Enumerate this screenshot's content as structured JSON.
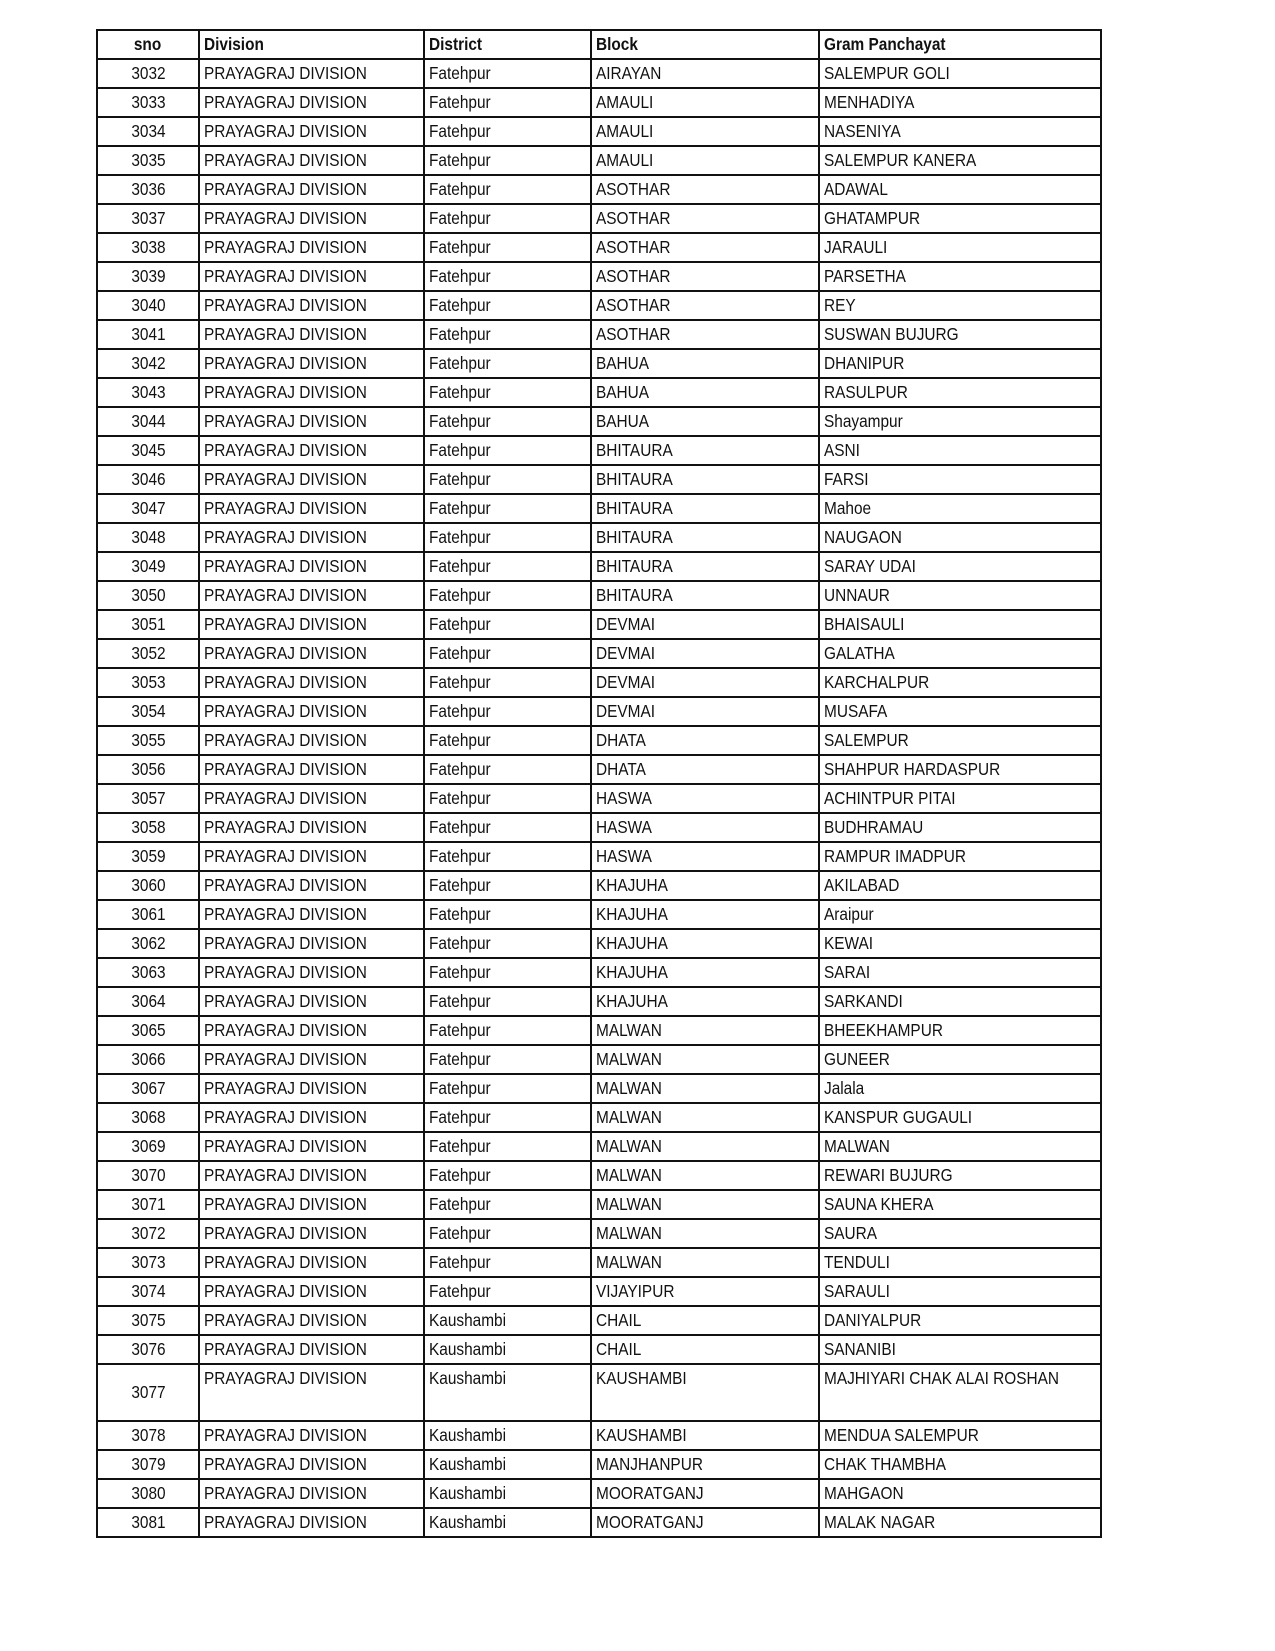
{
  "headers": [
    "sno",
    "Division",
    "District",
    "Block",
    "Gram Panchayat"
  ],
  "rows": [
    [
      "3032",
      "PRAYAGRAJ DIVISION",
      "Fatehpur",
      "AIRAYAN",
      "SALEMPUR GOLI"
    ],
    [
      "3033",
      "PRAYAGRAJ DIVISION",
      "Fatehpur",
      "AMAULI",
      "MENHADIYA"
    ],
    [
      "3034",
      "PRAYAGRAJ DIVISION",
      "Fatehpur",
      "AMAULI",
      "NASENIYA"
    ],
    [
      "3035",
      "PRAYAGRAJ DIVISION",
      "Fatehpur",
      "AMAULI",
      "SALEMPUR KANERA"
    ],
    [
      "3036",
      "PRAYAGRAJ DIVISION",
      "Fatehpur",
      "ASOTHAR",
      "ADAWAL"
    ],
    [
      "3037",
      "PRAYAGRAJ DIVISION",
      "Fatehpur",
      "ASOTHAR",
      "GHATAMPUR"
    ],
    [
      "3038",
      "PRAYAGRAJ DIVISION",
      "Fatehpur",
      "ASOTHAR",
      "JARAULI"
    ],
    [
      "3039",
      "PRAYAGRAJ DIVISION",
      "Fatehpur",
      "ASOTHAR",
      "PARSETHA"
    ],
    [
      "3040",
      "PRAYAGRAJ DIVISION",
      "Fatehpur",
      "ASOTHAR",
      "REY"
    ],
    [
      "3041",
      "PRAYAGRAJ DIVISION",
      "Fatehpur",
      "ASOTHAR",
      "SUSWAN BUJURG"
    ],
    [
      "3042",
      "PRAYAGRAJ DIVISION",
      "Fatehpur",
      "BAHUA",
      "DHANIPUR"
    ],
    [
      "3043",
      "PRAYAGRAJ DIVISION",
      "Fatehpur",
      "BAHUA",
      "RASULPUR"
    ],
    [
      "3044",
      "PRAYAGRAJ DIVISION",
      "Fatehpur",
      "BAHUA",
      "Shayampur"
    ],
    [
      "3045",
      "PRAYAGRAJ DIVISION",
      "Fatehpur",
      "BHITAURA",
      "ASNI"
    ],
    [
      "3046",
      "PRAYAGRAJ DIVISION",
      "Fatehpur",
      "BHITAURA",
      "FARSI"
    ],
    [
      "3047",
      "PRAYAGRAJ DIVISION",
      "Fatehpur",
      "BHITAURA",
      "Mahoe"
    ],
    [
      "3048",
      "PRAYAGRAJ DIVISION",
      "Fatehpur",
      "BHITAURA",
      "NAUGAON"
    ],
    [
      "3049",
      "PRAYAGRAJ DIVISION",
      "Fatehpur",
      "BHITAURA",
      "SARAY UDAI"
    ],
    [
      "3050",
      "PRAYAGRAJ DIVISION",
      "Fatehpur",
      "BHITAURA",
      "UNNAUR"
    ],
    [
      "3051",
      "PRAYAGRAJ DIVISION",
      "Fatehpur",
      "DEVMAI",
      "BHAISAULI"
    ],
    [
      "3052",
      "PRAYAGRAJ DIVISION",
      "Fatehpur",
      "DEVMAI",
      "GALATHA"
    ],
    [
      "3053",
      "PRAYAGRAJ DIVISION",
      "Fatehpur",
      "DEVMAI",
      "KARCHALPUR"
    ],
    [
      "3054",
      "PRAYAGRAJ DIVISION",
      "Fatehpur",
      "DEVMAI",
      "MUSAFA"
    ],
    [
      "3055",
      "PRAYAGRAJ DIVISION",
      "Fatehpur",
      "DHATA",
      "SALEMPUR"
    ],
    [
      "3056",
      "PRAYAGRAJ DIVISION",
      "Fatehpur",
      "DHATA",
      "SHAHPUR HARDASPUR"
    ],
    [
      "3057",
      "PRAYAGRAJ DIVISION",
      "Fatehpur",
      "HASWA",
      "ACHINTPUR PITAI"
    ],
    [
      "3058",
      "PRAYAGRAJ DIVISION",
      "Fatehpur",
      "HASWA",
      "BUDHRAMAU"
    ],
    [
      "3059",
      "PRAYAGRAJ DIVISION",
      "Fatehpur",
      "HASWA",
      "RAMPUR  IMADPUR"
    ],
    [
      "3060",
      "PRAYAGRAJ DIVISION",
      "Fatehpur",
      "KHAJUHA",
      "AKILABAD"
    ],
    [
      "3061",
      "PRAYAGRAJ DIVISION",
      "Fatehpur",
      "KHAJUHA",
      "Araipur"
    ],
    [
      "3062",
      "PRAYAGRAJ DIVISION",
      "Fatehpur",
      "KHAJUHA",
      "KEWAI"
    ],
    [
      "3063",
      "PRAYAGRAJ DIVISION",
      "Fatehpur",
      "KHAJUHA",
      "SARAI"
    ],
    [
      "3064",
      "PRAYAGRAJ DIVISION",
      "Fatehpur",
      "KHAJUHA",
      "SARKANDI"
    ],
    [
      "3065",
      "PRAYAGRAJ DIVISION",
      "Fatehpur",
      "MALWAN",
      "BHEEKHAMPUR"
    ],
    [
      "3066",
      "PRAYAGRAJ DIVISION",
      "Fatehpur",
      "MALWAN",
      "GUNEER"
    ],
    [
      "3067",
      "PRAYAGRAJ DIVISION",
      "Fatehpur",
      "MALWAN",
      "Jalala"
    ],
    [
      "3068",
      "PRAYAGRAJ DIVISION",
      "Fatehpur",
      "MALWAN",
      "KANSPUR GUGAULI"
    ],
    [
      "3069",
      "PRAYAGRAJ DIVISION",
      "Fatehpur",
      "MALWAN",
      "MALWAN"
    ],
    [
      "3070",
      "PRAYAGRAJ DIVISION",
      "Fatehpur",
      "MALWAN",
      "REWARI BUJURG"
    ],
    [
      "3071",
      "PRAYAGRAJ DIVISION",
      "Fatehpur",
      "MALWAN",
      "SAUNA KHERA"
    ],
    [
      "3072",
      "PRAYAGRAJ DIVISION",
      "Fatehpur",
      "MALWAN",
      "SAURA"
    ],
    [
      "3073",
      "PRAYAGRAJ DIVISION",
      "Fatehpur",
      "MALWAN",
      "TENDULI"
    ],
    [
      "3074",
      "PRAYAGRAJ DIVISION",
      "Fatehpur",
      "VIJAYIPUR",
      "SARAULI"
    ],
    [
      "3075",
      "PRAYAGRAJ DIVISION",
      "Kaushambi",
      "CHAIL",
      "DANIYALPUR"
    ],
    [
      "3076",
      "PRAYAGRAJ DIVISION",
      "Kaushambi",
      "CHAIL",
      "SANANIBI"
    ],
    [
      "3077",
      "PRAYAGRAJ DIVISION",
      "Kaushambi",
      "KAUSHAMBI",
      "MAJHIYARI CHAK ALAI ROSHAN"
    ],
    [
      "3078",
      "PRAYAGRAJ DIVISION",
      "Kaushambi",
      "KAUSHAMBI",
      "MENDUA SALEMPUR"
    ],
    [
      "3079",
      "PRAYAGRAJ DIVISION",
      "Kaushambi",
      "MANJHANPUR",
      "CHAK THAMBHA"
    ],
    [
      "3080",
      "PRAYAGRAJ DIVISION",
      "Kaushambi",
      "MOORATGANJ",
      "MAHGAON"
    ],
    [
      "3081",
      "PRAYAGRAJ DIVISION",
      "Kaushambi",
      "MOORATGANJ",
      "MALAK NAGAR"
    ]
  ]
}
